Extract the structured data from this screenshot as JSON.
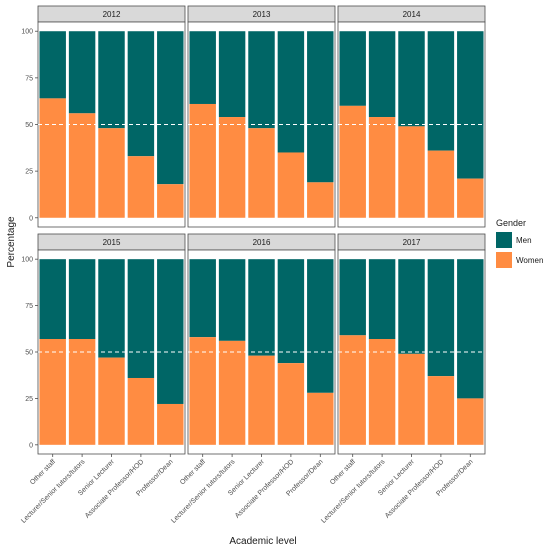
{
  "chart_data": {
    "type": "bar",
    "stacked": true,
    "xlabel": "Academic level",
    "ylabel": "Percentage",
    "ylim": [
      0,
      100
    ],
    "yticks": [
      0,
      25,
      50,
      75,
      100
    ],
    "reference_line": 50,
    "categories": [
      "Other staff",
      "Lecturer/Senior tutors/tutors",
      "Senior Lecturer",
      "Associate Professor/HOD",
      "Professor/Dean"
    ],
    "legend": {
      "title": "Gender",
      "placement": "right",
      "entries": [
        {
          "name": "Men",
          "color": "#006666"
        },
        {
          "name": "Women",
          "color": "#ff8c42"
        }
      ]
    },
    "facets": [
      {
        "label": "2012",
        "women": [
          64,
          56,
          48,
          33,
          18
        ]
      },
      {
        "label": "2013",
        "women": [
          61,
          54,
          48,
          35,
          19
        ]
      },
      {
        "label": "2014",
        "women": [
          60,
          54,
          49,
          36,
          21
        ]
      },
      {
        "label": "2015",
        "women": [
          57,
          57,
          47,
          36,
          22
        ]
      },
      {
        "label": "2016",
        "women": [
          58,
          56,
          48,
          44,
          28
        ]
      },
      {
        "label": "2017",
        "women": [
          59,
          57,
          49,
          37,
          25
        ]
      }
    ]
  }
}
